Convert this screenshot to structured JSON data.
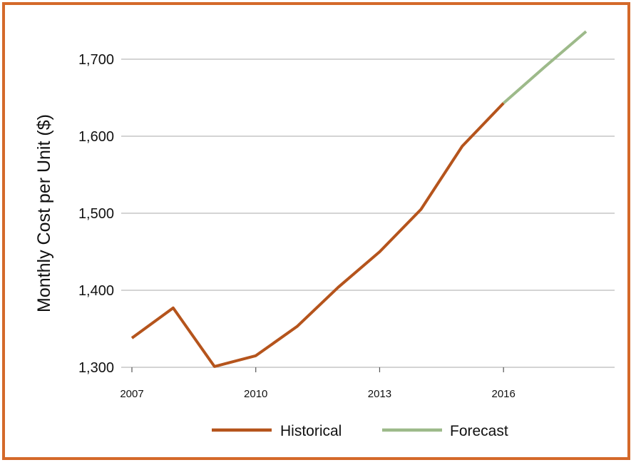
{
  "chart_data": {
    "type": "line",
    "title": "",
    "xlabel": "",
    "ylabel": "Monthly Cost per Unit ($)",
    "xlim": [
      2007,
      2018
    ],
    "ylim": [
      1300,
      1700
    ],
    "x_ticks": [
      "2007",
      "2010",
      "2013",
      "2016"
    ],
    "y_ticks": [
      "1,300",
      "1,400",
      "1,500",
      "1,600",
      "1,700"
    ],
    "grid": "horizontal",
    "legend_position": "bottom",
    "series": [
      {
        "name": "Historical",
        "color": "#b5541c",
        "x": [
          2007,
          2008,
          2009,
          2010,
          2011,
          2012,
          2013,
          2014,
          2015,
          2016
        ],
        "y": [
          1338,
          1377,
          1301,
          1315,
          1353,
          1404,
          1450,
          1505,
          1587,
          1643
        ]
      },
      {
        "name": "Forecast",
        "color": "#9dba8a",
        "x": [
          2016,
          2017,
          2018
        ],
        "y": [
          1643,
          1690,
          1736
        ]
      }
    ]
  },
  "colors": {
    "frame_border": "#d4692a",
    "gridline": "#bbbbbb"
  }
}
